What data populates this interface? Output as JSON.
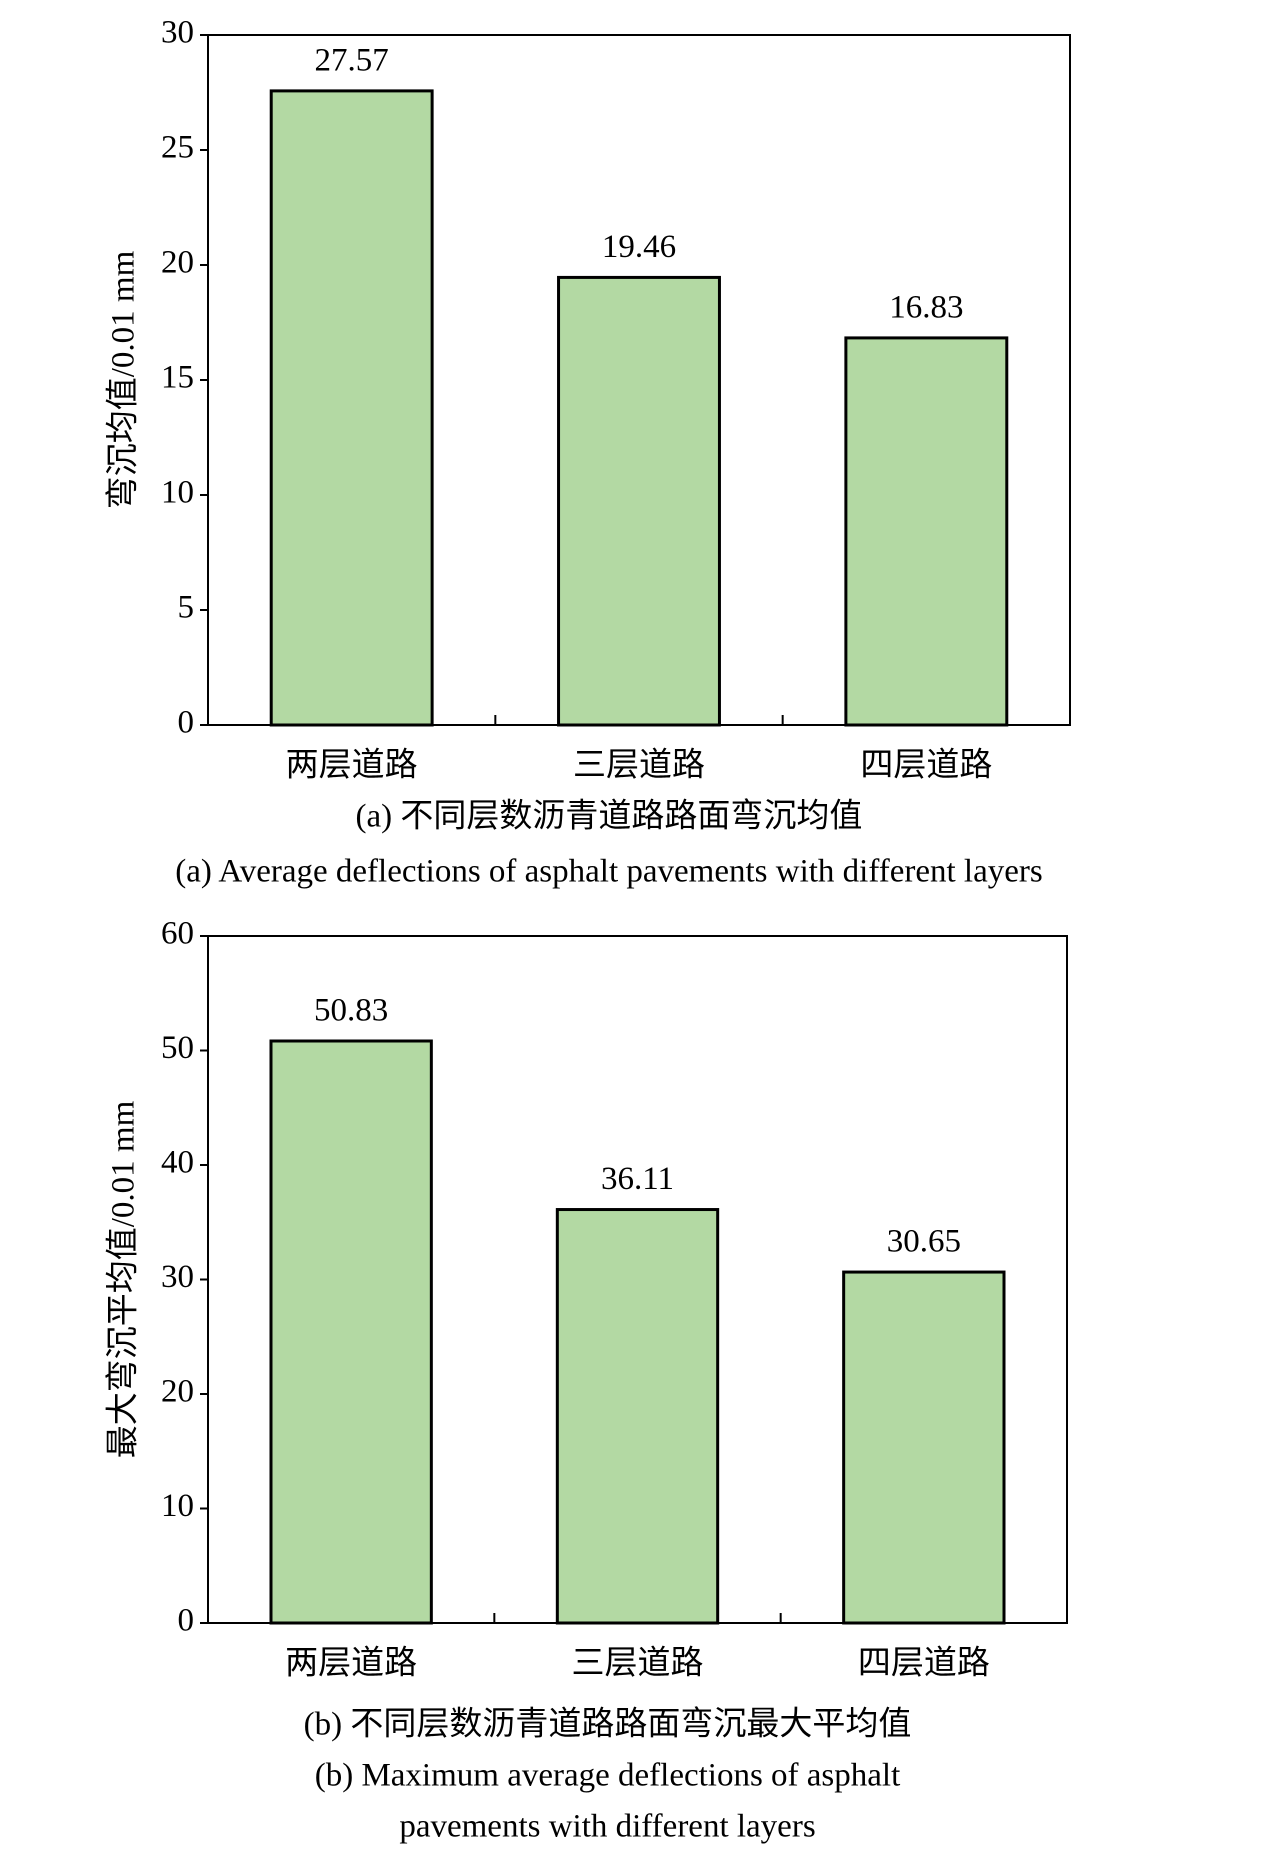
{
  "chart_data": [
    {
      "type": "bar",
      "ylabel": "弯沉均值/0.01 mm",
      "categories": [
        "两层道路",
        "三层道路",
        "四层道路"
      ],
      "values": [
        27.57,
        19.46,
        16.83
      ],
      "color": "#b3d9a3",
      "ylim": [
        0,
        30
      ],
      "yticks": [
        0,
        5,
        10,
        15,
        20,
        25,
        30
      ],
      "captions": [
        "(a) 不同层数沥青道路路面弯沉均值",
        "(a) Average deflections of asphalt pavements with different layers"
      ]
    },
    {
      "type": "bar",
      "ylabel": "最大弯沉平均值/0.01 mm",
      "categories": [
        "两层道路",
        "三层道路",
        "四层道路"
      ],
      "values": [
        50.83,
        36.11,
        30.65
      ],
      "color": "#b3d9a3",
      "ylim": [
        0,
        60
      ],
      "yticks": [
        0,
        10,
        20,
        30,
        40,
        50,
        60
      ],
      "captions": [
        "(b) 不同层数沥青道路路面弯沉最大平均值",
        "(b) Maximum average deflections of asphalt",
        "pavements with different layers"
      ]
    }
  ]
}
